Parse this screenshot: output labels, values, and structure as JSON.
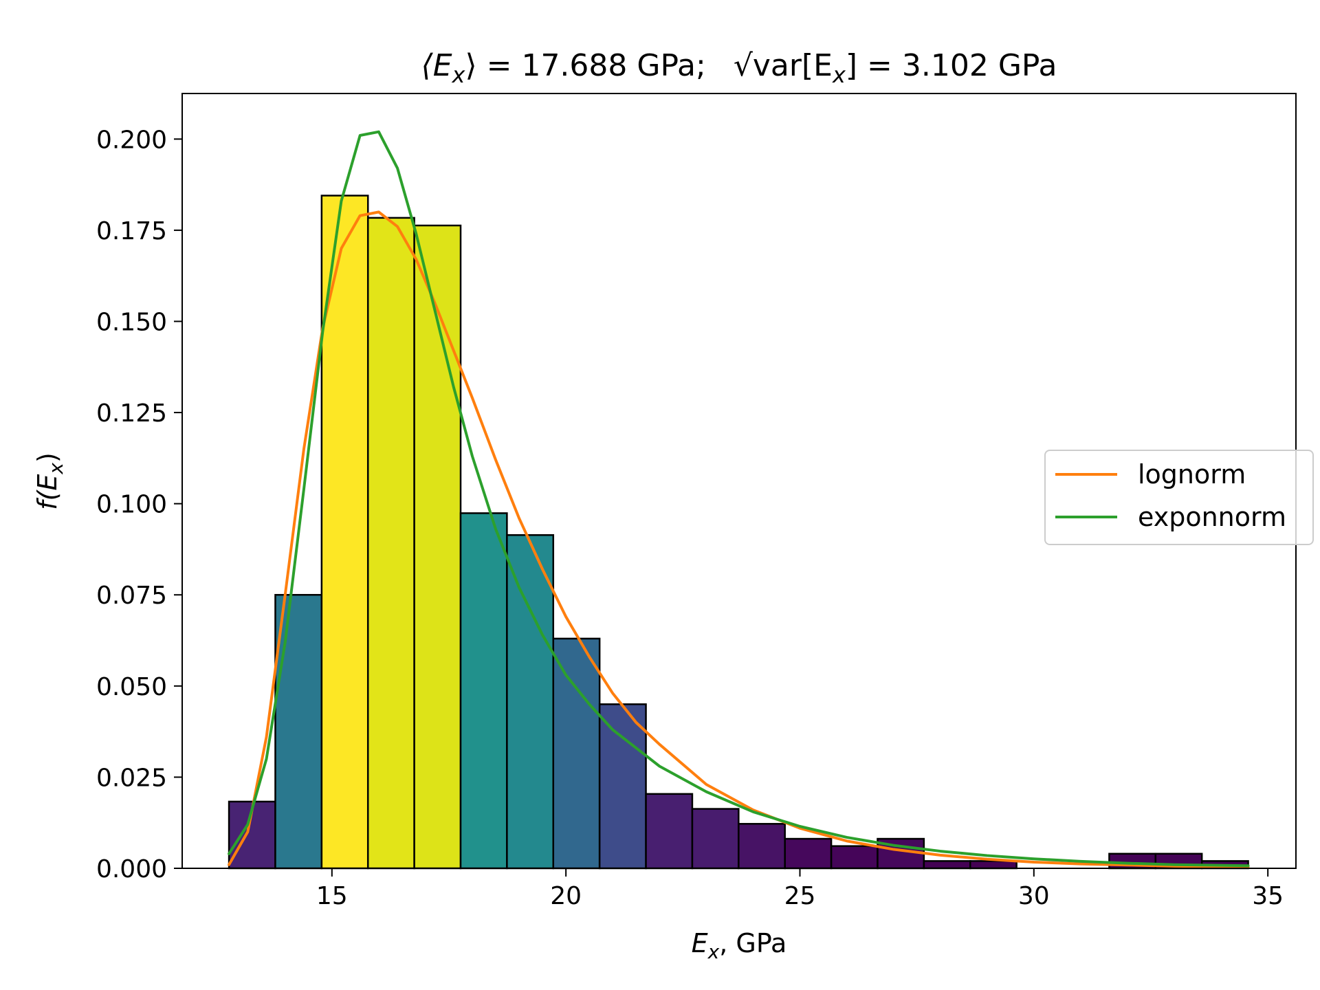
{
  "chart_data": {
    "type": "bar",
    "title": {
      "mean_part": "⟨E",
      "mean_sub": "x",
      "mean_rest": "⟩ = 17.688 GPa;",
      "std_part": "var[E",
      "std_sub": "x",
      "std_rest": "] = 3.102 GPa"
    },
    "xlabel": {
      "main": "E",
      "sub": "x",
      "rest": ", GPa"
    },
    "ylabel": {
      "main": "f(E",
      "sub": "x",
      "rest": ")"
    },
    "xlim": [
      11.8,
      35.6
    ],
    "ylim": [
      0,
      0.2125
    ],
    "xticks": [
      15,
      20,
      25,
      30,
      35
    ],
    "xtick_labels": [
      "15",
      "20",
      "25",
      "30",
      "35"
    ],
    "yticks": [
      0,
      0.025,
      0.05,
      0.075,
      0.1,
      0.125,
      0.15,
      0.175,
      0.2
    ],
    "ytick_labels": [
      "0.000",
      "0.025",
      "0.050",
      "0.075",
      "0.100",
      "0.125",
      "0.150",
      "0.175",
      "0.200"
    ],
    "grid": false,
    "histogram": {
      "bin_edges": [
        12.8,
        13.79,
        14.78,
        15.77,
        16.76,
        17.75,
        18.74,
        19.73,
        20.72,
        21.71,
        22.7,
        23.69,
        24.68,
        25.67,
        26.66,
        27.65,
        28.64,
        29.63,
        30.62,
        31.61,
        32.6,
        33.59,
        34.58
      ],
      "densities": [
        0.0183,
        0.075,
        0.1845,
        0.1784,
        0.1763,
        0.0974,
        0.0914,
        0.063,
        0.045,
        0.0204,
        0.0163,
        0.0122,
        0.0081,
        0.0061,
        0.0081,
        0.002,
        0.002,
        0.0,
        0.0,
        0.004,
        0.004,
        0.002
      ],
      "colors": [
        "#482373",
        "#2a788e",
        "#fde725",
        "#e2e418",
        "#dde318",
        "#21918c",
        "#23898e",
        "#31688e",
        "#3e4c8a",
        "#481f70",
        "#481c6e",
        "#471365",
        "#46085c",
        "#450559",
        "#46085c",
        "#440154",
        "#440154",
        "#440154",
        "#440154",
        "#450457",
        "#450457",
        "#440154"
      ],
      "edgecolor": "#000000"
    },
    "series": [
      {
        "name": "lognorm",
        "color": "#ff7f0e",
        "x": [
          12.8,
          13.2,
          13.6,
          14.0,
          14.4,
          14.8,
          15.2,
          15.6,
          16.0,
          16.4,
          16.8,
          17.2,
          17.6,
          18.0,
          18.5,
          19.0,
          19.5,
          20.0,
          20.5,
          21.0,
          21.5,
          22.0,
          23.0,
          24.0,
          25.0,
          26.0,
          27.0,
          28.0,
          29.0,
          30.0,
          31.0,
          32.0,
          33.0,
          34.58
        ],
        "y": [
          0.001,
          0.01,
          0.036,
          0.075,
          0.115,
          0.148,
          0.17,
          0.179,
          0.18,
          0.176,
          0.167,
          0.155,
          0.142,
          0.129,
          0.112,
          0.096,
          0.082,
          0.069,
          0.058,
          0.048,
          0.04,
          0.034,
          0.023,
          0.016,
          0.011,
          0.0075,
          0.0052,
          0.0036,
          0.0025,
          0.0017,
          0.0012,
          0.0009,
          0.0006,
          0.0004
        ]
      },
      {
        "name": "exponnorm",
        "color": "#2ca02c",
        "x": [
          12.8,
          13.2,
          13.6,
          14.0,
          14.4,
          14.8,
          15.2,
          15.6,
          16.0,
          16.4,
          16.8,
          17.2,
          17.6,
          18.0,
          18.5,
          19.0,
          19.5,
          20.0,
          20.5,
          21.0,
          21.5,
          22.0,
          23.0,
          24.0,
          25.0,
          26.0,
          27.0,
          28.0,
          29.0,
          30.0,
          31.0,
          32.0,
          33.0,
          34.58
        ],
        "y": [
          0.004,
          0.012,
          0.03,
          0.062,
          0.104,
          0.147,
          0.183,
          0.201,
          0.202,
          0.192,
          0.174,
          0.153,
          0.132,
          0.113,
          0.093,
          0.077,
          0.064,
          0.053,
          0.045,
          0.038,
          0.033,
          0.028,
          0.021,
          0.0155,
          0.0115,
          0.0085,
          0.0063,
          0.0047,
          0.0035,
          0.0026,
          0.0019,
          0.0014,
          0.001,
          0.0007
        ]
      }
    ],
    "legend": {
      "placement": "center-right"
    }
  }
}
